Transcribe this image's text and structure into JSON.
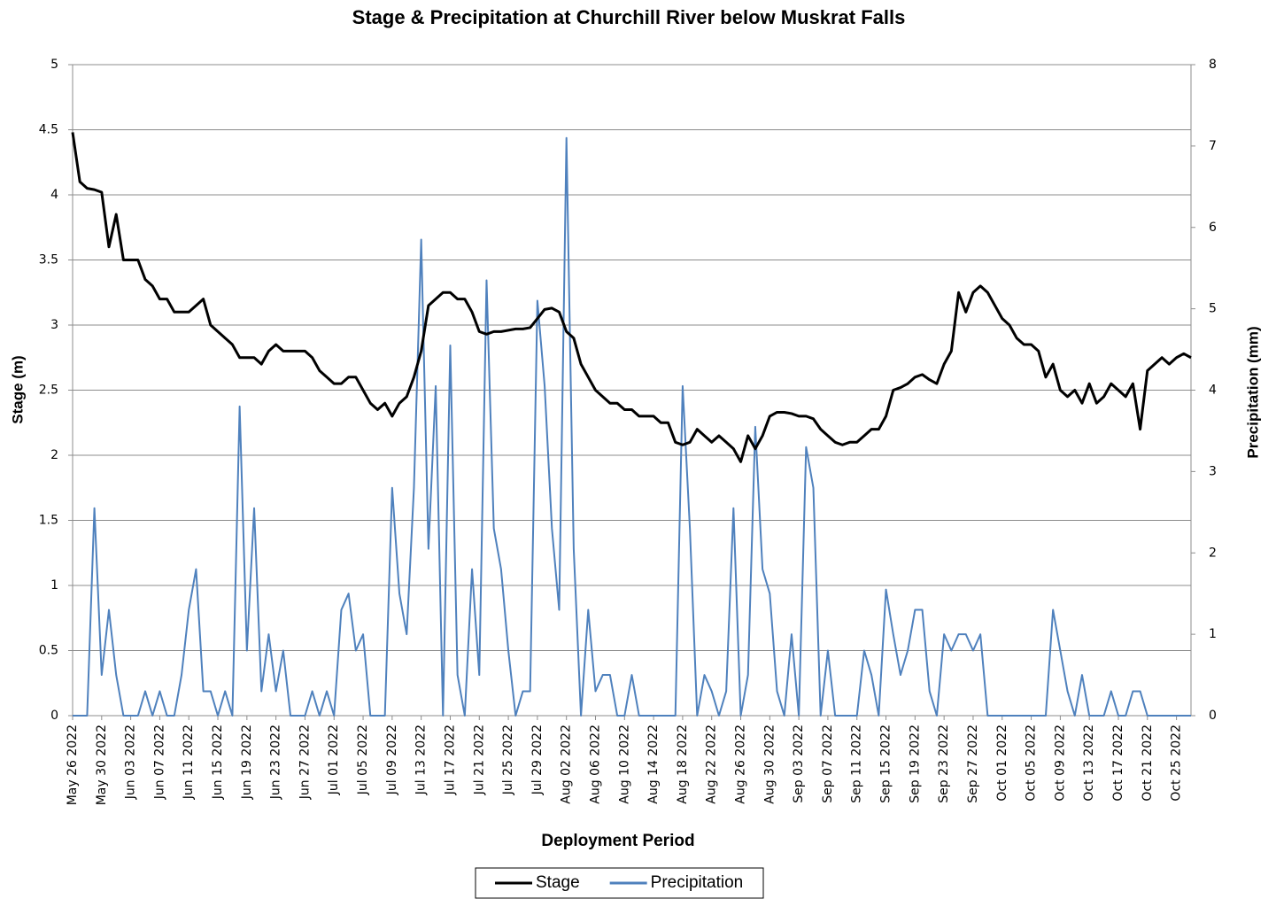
{
  "chart_data": {
    "type": "line",
    "title": "Stage & Precipitation at Churchill River below Muskrat Falls",
    "x_label": "Deployment Period",
    "y_label": "Stage (m)",
    "y2_label": "Precipitation (mm)",
    "x": [
      "2022-05-26",
      "2022-05-27",
      "2022-05-28",
      "2022-05-29",
      "2022-05-30",
      "2022-05-31",
      "2022-06-01",
      "2022-06-02",
      "2022-06-03",
      "2022-06-04",
      "2022-06-05",
      "2022-06-06",
      "2022-06-07",
      "2022-06-08",
      "2022-06-09",
      "2022-06-10",
      "2022-06-11",
      "2022-06-12",
      "2022-06-13",
      "2022-06-14",
      "2022-06-15",
      "2022-06-16",
      "2022-06-17",
      "2022-06-18",
      "2022-06-19",
      "2022-06-20",
      "2022-06-21",
      "2022-06-22",
      "2022-06-23",
      "2022-06-24",
      "2022-06-25",
      "2022-06-26",
      "2022-06-27",
      "2022-06-28",
      "2022-06-29",
      "2022-06-30",
      "2022-07-01",
      "2022-07-02",
      "2022-07-03",
      "2022-07-04",
      "2022-07-05",
      "2022-07-06",
      "2022-07-07",
      "2022-07-08",
      "2022-07-09",
      "2022-07-10",
      "2022-07-11",
      "2022-07-12",
      "2022-07-13",
      "2022-07-14",
      "2022-07-15",
      "2022-07-16",
      "2022-07-17",
      "2022-07-18",
      "2022-07-19",
      "2022-07-20",
      "2022-07-21",
      "2022-07-22",
      "2022-07-23",
      "2022-07-24",
      "2022-07-25",
      "2022-07-26",
      "2022-07-27",
      "2022-07-28",
      "2022-07-29",
      "2022-07-30",
      "2022-07-31",
      "2022-08-01",
      "2022-08-02",
      "2022-08-03",
      "2022-08-04",
      "2022-08-05",
      "2022-08-06",
      "2022-08-07",
      "2022-08-08",
      "2022-08-09",
      "2022-08-10",
      "2022-08-11",
      "2022-08-12",
      "2022-08-13",
      "2022-08-14",
      "2022-08-15",
      "2022-08-16",
      "2022-08-17",
      "2022-08-18",
      "2022-08-19",
      "2022-08-20",
      "2022-08-21",
      "2022-08-22",
      "2022-08-23",
      "2022-08-24",
      "2022-08-25",
      "2022-08-26",
      "2022-08-27",
      "2022-08-28",
      "2022-08-29",
      "2022-08-30",
      "2022-08-31",
      "2022-09-01",
      "2022-09-02",
      "2022-09-03",
      "2022-09-04",
      "2022-09-05",
      "2022-09-06",
      "2022-09-07",
      "2022-09-08",
      "2022-09-09",
      "2022-09-10",
      "2022-09-11",
      "2022-09-12",
      "2022-09-13",
      "2022-09-14",
      "2022-09-15",
      "2022-09-16",
      "2022-09-17",
      "2022-09-18",
      "2022-09-19",
      "2022-09-20",
      "2022-09-21",
      "2022-09-22",
      "2022-09-23",
      "2022-09-24",
      "2022-09-25",
      "2022-09-26",
      "2022-09-27",
      "2022-09-28",
      "2022-09-29",
      "2022-09-30",
      "2022-10-01",
      "2022-10-02",
      "2022-10-03",
      "2022-10-04",
      "2022-10-05",
      "2022-10-06",
      "2022-10-07",
      "2022-10-08",
      "2022-10-09",
      "2022-10-10",
      "2022-10-11",
      "2022-10-12",
      "2022-10-13",
      "2022-10-14",
      "2022-10-15",
      "2022-10-16",
      "2022-10-17",
      "2022-10-18",
      "2022-10-19",
      "2022-10-20",
      "2022-10-21",
      "2022-10-22",
      "2022-10-23",
      "2022-10-24",
      "2022-10-25",
      "2022-10-26",
      "2022-10-27"
    ],
    "series": [
      {
        "name": "Stage",
        "color": "#000000",
        "axis": "y",
        "values": [
          4.48,
          4.1,
          4.05,
          4.04,
          4.02,
          3.6,
          3.85,
          3.5,
          3.5,
          3.5,
          3.35,
          3.3,
          3.2,
          3.2,
          3.1,
          3.1,
          3.1,
          3.15,
          3.2,
          3.0,
          2.95,
          2.9,
          2.85,
          2.75,
          2.75,
          2.75,
          2.7,
          2.8,
          2.85,
          2.8,
          2.8,
          2.8,
          2.8,
          2.75,
          2.65,
          2.6,
          2.55,
          2.55,
          2.6,
          2.6,
          2.5,
          2.4,
          2.35,
          2.4,
          2.3,
          2.4,
          2.45,
          2.6,
          2.8,
          3.15,
          3.2,
          3.25,
          3.25,
          3.2,
          3.2,
          3.1,
          2.95,
          2.93,
          2.95,
          2.95,
          2.96,
          2.97,
          2.97,
          2.98,
          3.05,
          3.12,
          3.13,
          3.1,
          2.95,
          2.9,
          2.7,
          2.6,
          2.5,
          2.45,
          2.4,
          2.4,
          2.35,
          2.35,
          2.3,
          2.3,
          2.3,
          2.25,
          2.25,
          2.1,
          2.08,
          2.1,
          2.2,
          2.15,
          2.1,
          2.15,
          2.1,
          2.05,
          1.95,
          2.15,
          2.05,
          2.15,
          2.3,
          2.33,
          2.33,
          2.32,
          2.3,
          2.3,
          2.28,
          2.2,
          2.15,
          2.1,
          2.08,
          2.1,
          2.1,
          2.15,
          2.2,
          2.2,
          2.3,
          2.5,
          2.52,
          2.55,
          2.6,
          2.62,
          2.58,
          2.55,
          2.7,
          2.8,
          3.25,
          3.1,
          3.25,
          3.3,
          3.25,
          3.15,
          3.05,
          3.0,
          2.9,
          2.85,
          2.85,
          2.8,
          2.6,
          2.7,
          2.5,
          2.45,
          2.5,
          2.4,
          2.55,
          2.4,
          2.45,
          2.55,
          2.5,
          2.45,
          2.55,
          2.2,
          2.65,
          2.7,
          2.75,
          2.7,
          2.75,
          2.78,
          2.75
        ]
      },
      {
        "name": "Precipitation",
        "color": "#4f81bd",
        "axis": "y2",
        "values": [
          0,
          0,
          0,
          2.55,
          0.5,
          1.3,
          0.5,
          0,
          0,
          0,
          0.3,
          0,
          0.3,
          0,
          0,
          0.5,
          1.3,
          1.8,
          0.3,
          0.3,
          0,
          0.3,
          0,
          3.8,
          0.8,
          2.55,
          0.3,
          1.0,
          0.3,
          0.8,
          0,
          0,
          0,
          0.3,
          0,
          0.3,
          0,
          1.3,
          1.5,
          0.8,
          1.0,
          0,
          0,
          0,
          2.8,
          1.5,
          1.0,
          2.8,
          5.85,
          2.05,
          4.05,
          0,
          4.55,
          0.5,
          0,
          1.8,
          0.5,
          5.35,
          2.3,
          1.8,
          0.8,
          0,
          0.3,
          0.3,
          5.1,
          4.05,
          2.3,
          1.3,
          7.1,
          2.05,
          0,
          1.3,
          0.3,
          0.5,
          0.5,
          0,
          0,
          0.5,
          0,
          0,
          0,
          0,
          0,
          0,
          4.05,
          2.3,
          0,
          0.5,
          0.3,
          0,
          0.3,
          2.55,
          0,
          0.5,
          3.55,
          1.8,
          1.5,
          0.3,
          0,
          1.0,
          0,
          3.3,
          2.8,
          0,
          0.8,
          0,
          0,
          0,
          0,
          0.8,
          0.5,
          0,
          1.55,
          1.0,
          0.5,
          0.8,
          1.3,
          1.3,
          0.3,
          0,
          1.0,
          0.8,
          1.0,
          1.0,
          0.8,
          1.0,
          0,
          0,
          0,
          0,
          0,
          0,
          0,
          0,
          0,
          1.3,
          0.8,
          0.3,
          0,
          0.5,
          0,
          0,
          0,
          0.3,
          0,
          0,
          0.3,
          0.3,
          0,
          0,
          0,
          0,
          0,
          0,
          0
        ]
      }
    ],
    "xlim": [
      "2022-05-26",
      "2022-10-27"
    ],
    "xticks": [
      {
        "value": "2022-05-26",
        "label": "May 26 2022"
      },
      {
        "value": "2022-05-30",
        "label": "May 30 2022"
      },
      {
        "value": "2022-06-03",
        "label": "Jun 03 2022"
      },
      {
        "value": "2022-06-07",
        "label": "Jun 07 2022"
      },
      {
        "value": "2022-06-11",
        "label": "Jun 11 2022"
      },
      {
        "value": "2022-06-15",
        "label": "Jun 15 2022"
      },
      {
        "value": "2022-06-19",
        "label": "Jun 19 2022"
      },
      {
        "value": "2022-06-23",
        "label": "Jun 23 2022"
      },
      {
        "value": "2022-06-27",
        "label": "Jun 27 2022"
      },
      {
        "value": "2022-07-01",
        "label": "Jul 01 2022"
      },
      {
        "value": "2022-07-05",
        "label": "Jul 05 2022"
      },
      {
        "value": "2022-07-09",
        "label": "Jul 09 2022"
      },
      {
        "value": "2022-07-13",
        "label": "Jul 13 2022"
      },
      {
        "value": "2022-07-17",
        "label": "Jul 17 2022"
      },
      {
        "value": "2022-07-21",
        "label": "Jul 21 2022"
      },
      {
        "value": "2022-07-25",
        "label": "Jul 25 2022"
      },
      {
        "value": "2022-07-29",
        "label": "Jul 29 2022"
      },
      {
        "value": "2022-08-02",
        "label": "Aug 02 2022"
      },
      {
        "value": "2022-08-06",
        "label": "Aug 06 2022"
      },
      {
        "value": "2022-08-10",
        "label": "Aug 10 2022"
      },
      {
        "value": "2022-08-14",
        "label": "Aug 14 2022"
      },
      {
        "value": "2022-08-18",
        "label": "Aug 18 2022"
      },
      {
        "value": "2022-08-22",
        "label": "Aug 22 2022"
      },
      {
        "value": "2022-08-26",
        "label": "Aug 26 2022"
      },
      {
        "value": "2022-08-30",
        "label": "Aug 30 2022"
      },
      {
        "value": "2022-09-03",
        "label": "Sep 03 2022"
      },
      {
        "value": "2022-09-07",
        "label": "Sep 07 2022"
      },
      {
        "value": "2022-09-11",
        "label": "Sep 11 2022"
      },
      {
        "value": "2022-09-15",
        "label": "Sep 15 2022"
      },
      {
        "value": "2022-09-19",
        "label": "Sep 19 2022"
      },
      {
        "value": "2022-09-23",
        "label": "Sep 23 2022"
      },
      {
        "value": "2022-09-27",
        "label": "Sep 27 2022"
      },
      {
        "value": "2022-10-01",
        "label": "Oct 01 2022"
      },
      {
        "value": "2022-10-05",
        "label": "Oct 05 2022"
      },
      {
        "value": "2022-10-09",
        "label": "Oct 09 2022"
      },
      {
        "value": "2022-10-13",
        "label": "Oct 13 2022"
      },
      {
        "value": "2022-10-17",
        "label": "Oct 17 2022"
      },
      {
        "value": "2022-10-21",
        "label": "Oct 21 2022"
      },
      {
        "value": "2022-10-25",
        "label": "Oct 25 2022"
      }
    ],
    "ylim": [
      0,
      5
    ],
    "yticks": [
      0,
      0.5,
      1,
      1.5,
      2,
      2.5,
      3,
      3.5,
      4,
      4.5,
      5
    ],
    "y2lim": [
      0,
      8
    ],
    "y2ticks": [
      0,
      1,
      2,
      3,
      4,
      5,
      6,
      7,
      8
    ],
    "grid": true,
    "legend": "bottom"
  }
}
